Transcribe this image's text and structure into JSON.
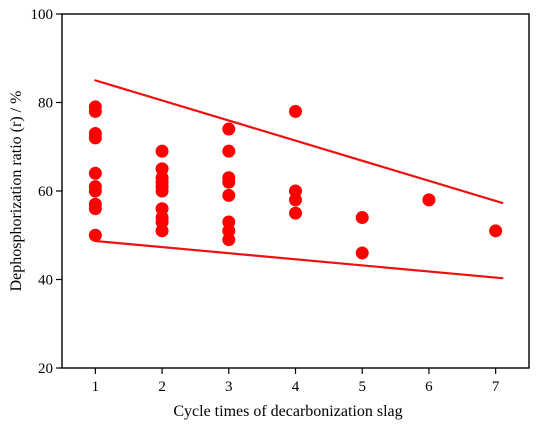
{
  "chart_data": {
    "type": "scatter",
    "title": "",
    "xlabel": "Cycle times of decarbonization slag",
    "ylabel": "Dephosphorization ratio (r) / %",
    "xlim": [
      0.5,
      7.5
    ],
    "ylim": [
      20,
      100
    ],
    "x_ticks": [
      1,
      2,
      3,
      4,
      5,
      6,
      7
    ],
    "y_ticks": [
      20,
      40,
      60,
      80,
      100
    ],
    "grid": false,
    "legend": "none",
    "marker_color": "#ff0000",
    "line_color": "#ee1111",
    "series": [
      {
        "points": [
          {
            "x": 1,
            "y": 79
          },
          {
            "x": 1,
            "y": 78
          },
          {
            "x": 1,
            "y": 73
          },
          {
            "x": 1,
            "y": 72
          },
          {
            "x": 1,
            "y": 64
          },
          {
            "x": 1,
            "y": 61
          },
          {
            "x": 1,
            "y": 60
          },
          {
            "x": 1,
            "y": 57
          },
          {
            "x": 1,
            "y": 56
          },
          {
            "x": 1,
            "y": 50
          },
          {
            "x": 2,
            "y": 69
          },
          {
            "x": 2,
            "y": 65
          },
          {
            "x": 2,
            "y": 63
          },
          {
            "x": 2,
            "y": 62
          },
          {
            "x": 2,
            "y": 61
          },
          {
            "x": 2,
            "y": 60
          },
          {
            "x": 2,
            "y": 56
          },
          {
            "x": 2,
            "y": 54
          },
          {
            "x": 2,
            "y": 53
          },
          {
            "x": 2,
            "y": 51
          },
          {
            "x": 3,
            "y": 74
          },
          {
            "x": 3,
            "y": 69
          },
          {
            "x": 3,
            "y": 63
          },
          {
            "x": 3,
            "y": 62
          },
          {
            "x": 3,
            "y": 59
          },
          {
            "x": 3,
            "y": 53
          },
          {
            "x": 3,
            "y": 51
          },
          {
            "x": 3,
            "y": 49
          },
          {
            "x": 4,
            "y": 78
          },
          {
            "x": 4,
            "y": 60
          },
          {
            "x": 4,
            "y": 58
          },
          {
            "x": 4,
            "y": 55
          },
          {
            "x": 5,
            "y": 54
          },
          {
            "x": 5,
            "y": 46
          },
          {
            "x": 6,
            "y": 58
          },
          {
            "x": 7,
            "y": 51
          }
        ]
      }
    ],
    "boundary_lines": [
      {
        "from": {
          "x": 1,
          "y": 85
        },
        "to": {
          "x": 7.1,
          "y": 57.3
        }
      },
      {
        "from": {
          "x": 1,
          "y": 48.7
        },
        "to": {
          "x": 7.1,
          "y": 40.3
        }
      }
    ]
  }
}
